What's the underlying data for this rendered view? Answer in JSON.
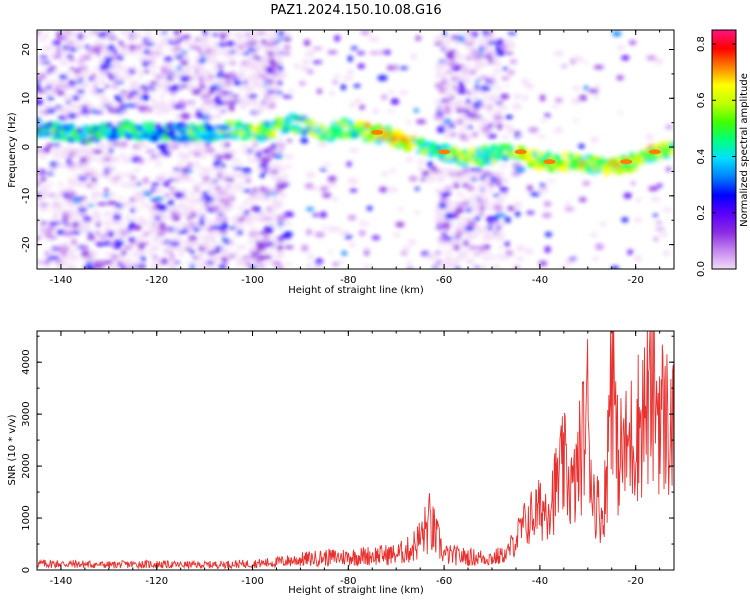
{
  "title": "PAZ1.2024.150.10.08.G16",
  "chart_data": [
    {
      "type": "heatmap",
      "xlabel": "Height of straight line (km)",
      "ylabel": "Frequency (Hz)",
      "xlim": [
        -145,
        -12
      ],
      "ylim": [
        -25,
        24
      ],
      "xticks": [
        -140,
        -120,
        -100,
        -80,
        -60,
        -40,
        -20
      ],
      "yticks": [
        -20,
        -10,
        0,
        10,
        20
      ],
      "ridge": {
        "x": [
          -144,
          -140,
          -136,
          -132,
          -126,
          -120,
          -114,
          -108,
          -104,
          -100,
          -96,
          -92,
          -88,
          -84,
          -80,
          -76,
          -72,
          -68,
          -64,
          -60,
          -56,
          -52,
          -48,
          -44,
          -40,
          -36,
          -32,
          -28,
          -24,
          -20,
          -16,
          -12
        ],
        "y": [
          4,
          3,
          2.5,
          3,
          3.5,
          3,
          3,
          3,
          3.5,
          3,
          3.5,
          5,
          4,
          3,
          4,
          3,
          2.5,
          1,
          0,
          -1,
          -2,
          -2,
          -1,
          -1,
          -3,
          -3,
          -3,
          -4,
          -4,
          -3,
          -1,
          0
        ]
      },
      "colorbar": {
        "label": "Normalized spectral amplitude",
        "range": [
          0,
          0.85
        ],
        "ticks": [
          0.0,
          0.2,
          0.4,
          0.6,
          0.8
        ],
        "colors": [
          "#f2dcf7",
          "#c586f0",
          "#8a2be2",
          "#5a00ff",
          "#0000ff",
          "#0080ff",
          "#00e0ff",
          "#00ff80",
          "#40ff00",
          "#c0ff00",
          "#ffff00",
          "#ff8000",
          "#ff0000",
          "#ff1480"
        ]
      }
    },
    {
      "type": "line",
      "xlabel": "Height of straight line (km)",
      "ylabel": "SNR (10 * v/v)",
      "xlim": [
        -145,
        -12
      ],
      "ylim": [
        0,
        4600
      ],
      "xticks": [
        -140,
        -120,
        -100,
        -80,
        -60,
        -40,
        -20
      ],
      "yticks": [
        0,
        1000,
        2000,
        3000,
        4000
      ],
      "color": "#e8312f",
      "series": [
        {
          "x": [
            -145,
            -140,
            -135,
            -130,
            -125,
            -120,
            -115,
            -110,
            -105,
            -100,
            -95,
            -90,
            -85,
            -80,
            -75,
            -70,
            -67,
            -65,
            -63,
            -60,
            -55,
            -50,
            -47,
            -45,
            -43,
            -41,
            -39,
            -37,
            -35,
            -33,
            -31,
            -30,
            -29,
            -27,
            -26,
            -25,
            -24,
            -22,
            -20,
            -18,
            -16,
            -15,
            -14,
            -13,
            -12
          ],
          "y": [
            120,
            120,
            110,
            100,
            110,
            110,
            100,
            100,
            110,
            120,
            150,
            200,
            240,
            250,
            280,
            300,
            400,
            600,
            900,
            300,
            250,
            230,
            300,
            600,
            900,
            1100,
            1200,
            1500,
            2000,
            1500,
            2500,
            3100,
            1500,
            1000,
            1800,
            4600,
            2200,
            2300,
            2700,
            3100,
            3400,
            3100,
            2900,
            2800,
            2600
          ]
        }
      ]
    }
  ]
}
